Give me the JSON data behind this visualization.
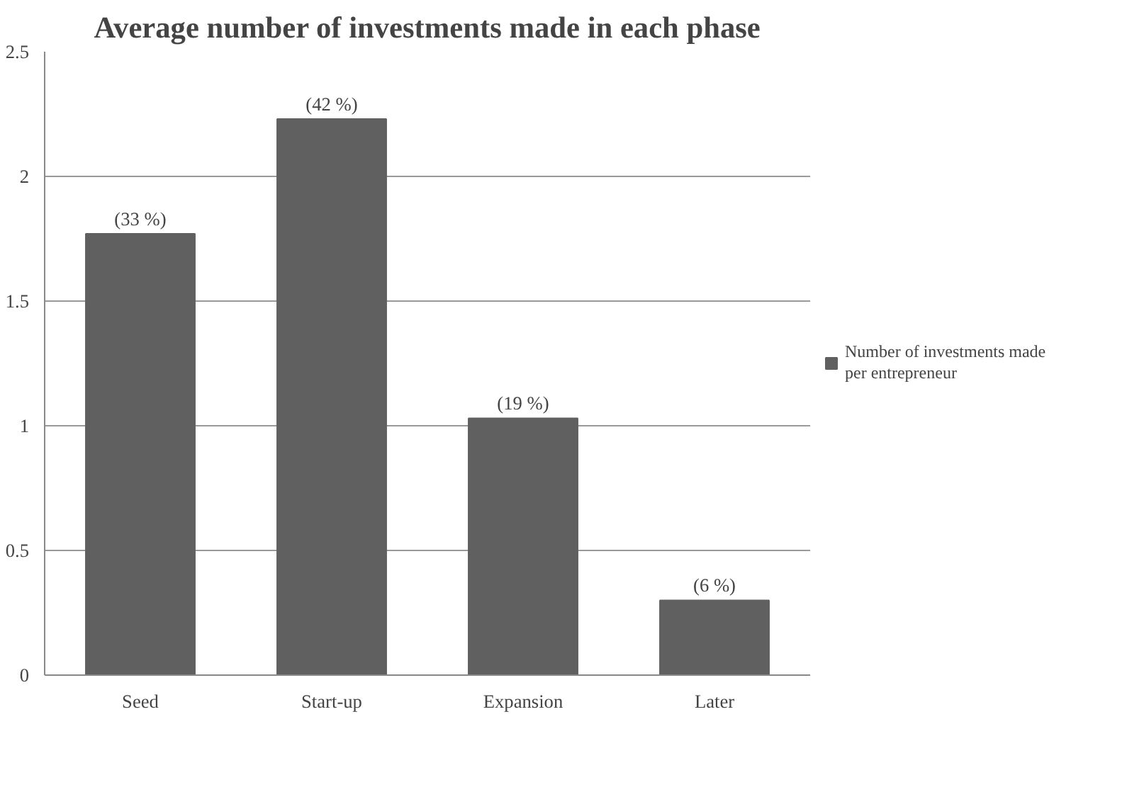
{
  "chart_data": {
    "type": "bar",
    "title": "Average number of investments made in each phase",
    "categories": [
      "Seed",
      "Start-up",
      "Expansion",
      "Later"
    ],
    "series": [
      {
        "name": "Number of investments made per entrepreneur",
        "color": "#606060",
        "values": [
          1.77,
          2.23,
          1.03,
          0.3
        ]
      }
    ],
    "annotations": [
      {
        "text": "(33 %)",
        "x": "Seed",
        "y": 1.77
      },
      {
        "text": "(42 %)",
        "x": "Start-up",
        "y": 2.23
      },
      {
        "text": "(19 %)",
        "x": "Expansion",
        "y": 1.03
      },
      {
        "text": "(6 %)",
        "x": "Later",
        "y": 0.3
      }
    ],
    "ylim": [
      0,
      2.5
    ],
    "yticks": [
      0,
      0.5,
      1,
      1.5,
      2,
      2.5
    ],
    "grid": "y",
    "legend": "right"
  }
}
